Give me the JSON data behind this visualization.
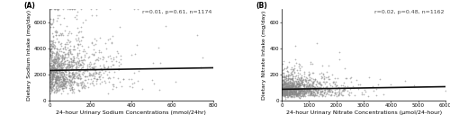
{
  "panel_A": {
    "label": "(A)",
    "annotation": "r=0.01, p=0.61, n=1174",
    "xlabel": "24-hour Urinary Sodium Concentrations (mmol/24hr)",
    "ylabel": "Dietary Sodium Intake (mg/day)",
    "xlim": [
      0,
      800
    ],
    "ylim": [
      0,
      7000
    ],
    "xticks": [
      0,
      200,
      400,
      600,
      800
    ],
    "yticks": [
      0,
      2000,
      4000,
      6000
    ],
    "n": 1174,
    "x_scale": 100,
    "y_mean": 2400,
    "y_std": 1100,
    "trend_x": [
      0,
      800
    ],
    "trend_y": [
      2300,
      2500
    ],
    "seed": 42
  },
  "panel_B": {
    "label": "(B)",
    "annotation": "r=0.02, p=0.48, n=1162",
    "xlabel": "24-hour Urinary Nitrate Concentrations (μmol/24-hour)",
    "ylabel": "Dietary Nitrate Intake (mg/day)",
    "xlim": [
      0,
      6000
    ],
    "ylim": [
      0,
      700
    ],
    "xticks": [
      0,
      1000,
      2000,
      3000,
      4000,
      5000,
      6000
    ],
    "yticks": [
      0,
      200,
      400,
      600
    ],
    "n": 1162,
    "x_scale": 700,
    "y_mean": 90,
    "y_std": 75,
    "trend_x": [
      0,
      6000
    ],
    "trend_y": [
      85,
      105
    ],
    "seed": 99
  },
  "scatter_color": "#888888",
  "scatter_alpha": 0.6,
  "scatter_size": 1.5,
  "scatter_marker": "o",
  "scatter_edgecolor": "#666666",
  "scatter_linewidth": 0.0,
  "trend_color": "#111111",
  "trend_linewidth": 1.2,
  "bg_color": "#ffffff",
  "label_fontsize": 5.5,
  "annot_fontsize": 4.5,
  "tick_fontsize": 4.0,
  "axis_label_fontsize": 4.5
}
